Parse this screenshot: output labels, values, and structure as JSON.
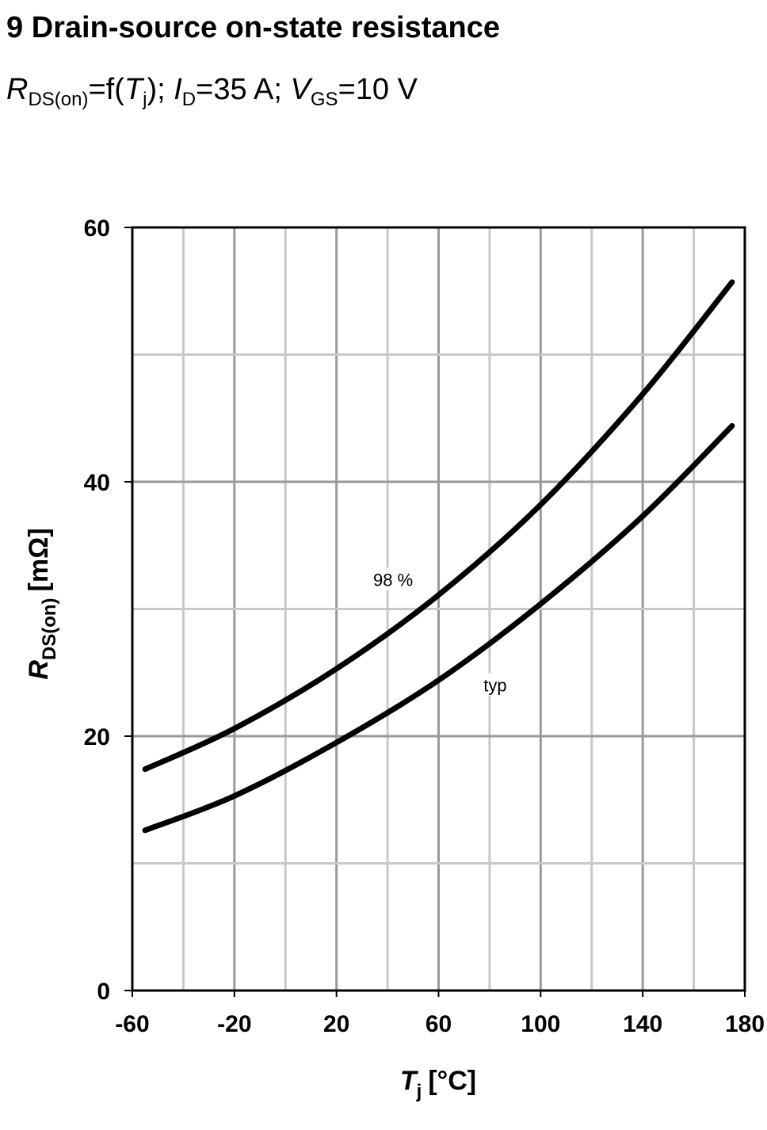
{
  "header": {
    "title": "9 Drain-source on-state resistance",
    "subtitle": {
      "r": "R",
      "r_sub": "DS(on)",
      "eq1": "=f(",
      "t": "T",
      "t_sub": "j",
      "mid1": "); ",
      "i": "I",
      "i_sub": "D",
      "mid2": "=35 A; ",
      "v": "V",
      "v_sub": "GS",
      "end": "=10 V"
    }
  },
  "chart_data": {
    "type": "line",
    "x_axis": {
      "label": "T",
      "label_sub": "j",
      "unit": "[°C]",
      "range": [
        -60,
        180
      ],
      "ticks": [
        "-60",
        "-20",
        "20",
        "60",
        "100",
        "140",
        "180"
      ],
      "minor_grid_step": 20
    },
    "y_axis": {
      "label": "R",
      "label_sub": "DS(on)",
      "unit": "[mΩ]",
      "range": [
        0,
        60
      ],
      "ticks": [
        "0",
        "20",
        "40",
        "60"
      ],
      "minor_grid_step": 10
    },
    "grid": true,
    "series": [
      {
        "name": "98 %",
        "x": [
          -55,
          -20,
          20,
          60,
          100,
          140,
          175
        ],
        "y": [
          17.4,
          20.6,
          25.3,
          31.1,
          38.2,
          46.9,
          55.7
        ],
        "color": "#000000"
      },
      {
        "name": "typ",
        "x": [
          -55,
          -20,
          20,
          60,
          100,
          140,
          175
        ],
        "y": [
          12.6,
          15.3,
          19.5,
          24.4,
          30.4,
          37.3,
          44.4
        ],
        "color": "#000000"
      }
    ]
  }
}
